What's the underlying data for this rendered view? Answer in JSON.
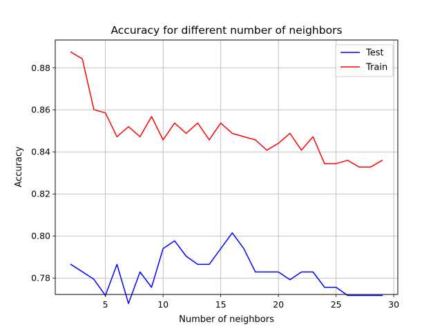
{
  "chart_data": {
    "type": "line",
    "title": "Accuracy for different number of neighbors",
    "xlabel": "Number of neighbors",
    "ylabel": "Accuracy",
    "xlim": [
      0.65,
      30.35
    ],
    "ylim": [
      0.7722,
      0.8932
    ],
    "xticks": [
      5,
      10,
      15,
      20,
      25,
      30
    ],
    "yticks": [
      0.78,
      0.8,
      0.82,
      0.84,
      0.86,
      0.88
    ],
    "grid": true,
    "legend_position": "top-right",
    "x": [
      2,
      3,
      4,
      5,
      6,
      7,
      8,
      9,
      10,
      11,
      12,
      13,
      14,
      15,
      16,
      17,
      18,
      19,
      20,
      21,
      22,
      23,
      24,
      25,
      26,
      27,
      28,
      29
    ],
    "series": [
      {
        "name": "Test",
        "color": "#0000ff",
        "values": [
          0.7865,
          0.783,
          0.7794,
          0.7717,
          0.7865,
          0.7679,
          0.7829,
          0.7756,
          0.794,
          0.7977,
          0.7904,
          0.7865,
          0.7865,
          0.794,
          0.8015,
          0.794,
          0.7829,
          0.7829,
          0.7829,
          0.7792,
          0.7829,
          0.7829,
          0.7756,
          0.7756,
          0.7717,
          0.7717,
          0.7717,
          0.7717
        ]
      },
      {
        "name": "Train",
        "color": "#ff0000",
        "values": [
          0.8875,
          0.8842,
          0.8601,
          0.8585,
          0.8472,
          0.852,
          0.8472,
          0.8568,
          0.8457,
          0.8537,
          0.8488,
          0.8537,
          0.8457,
          0.8537,
          0.8488,
          0.8472,
          0.8457,
          0.8408,
          0.8441,
          0.8488,
          0.8408,
          0.8472,
          0.8344,
          0.8344,
          0.836,
          0.8328,
          0.8328,
          0.836
        ]
      }
    ]
  }
}
